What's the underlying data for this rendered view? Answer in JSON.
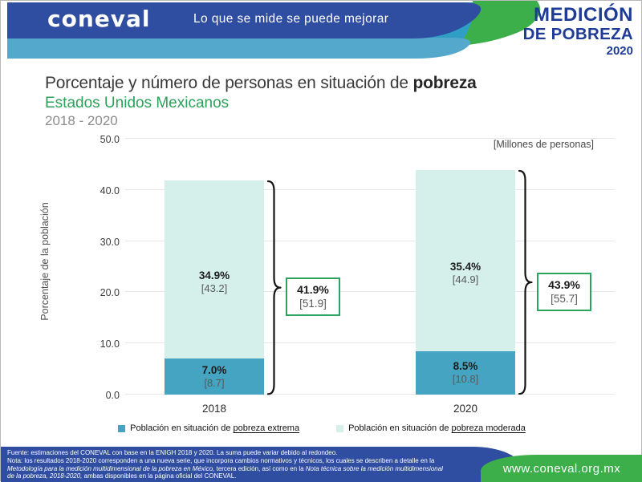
{
  "header": {
    "logo_text": "coneval",
    "slogan": "Lo que se mide se puede mejorar",
    "badge": {
      "line1": "MEDICIÓN",
      "line2": "DE POBREZA",
      "line3": "2020"
    }
  },
  "title": {
    "main_regular": "Porcentaje y número de personas en situación de ",
    "main_bold": "pobreza",
    "subtitle": "Estados Unidos Mexicanos",
    "period": "2018 - 2020"
  },
  "chart_data": {
    "type": "bar",
    "stacked": true,
    "categories": [
      "2018",
      "2020"
    ],
    "series": [
      {
        "name": "Población en situación de pobreza extrema",
        "values_pct": [
          7.0,
          8.5
        ],
        "values_millions": [
          8.7,
          10.8
        ],
        "color": "#45a4c2"
      },
      {
        "name": "Población en situación de pobreza moderada",
        "values_pct": [
          34.9,
          35.4
        ],
        "values_millions": [
          43.2,
          44.9
        ],
        "color": "#d5f0ea"
      }
    ],
    "totals_pct": [
      41.9,
      43.9
    ],
    "totals_millions": [
      51.9,
      55.7
    ],
    "ylabel": "Porcentaje de la población",
    "y_ticks": [
      0.0,
      10.0,
      20.0,
      30.0,
      40.0,
      50.0
    ],
    "ylim": [
      0,
      50
    ],
    "units_note": "[Millones de personas]",
    "grid": true,
    "legend_position": "bottom"
  },
  "legend": [
    {
      "prefix": "Población en situación de ",
      "underlined": "pobreza extrema"
    },
    {
      "prefix": "Población en situación de ",
      "underlined": "pobreza moderada"
    }
  ],
  "footer": {
    "lines": [
      [
        {
          "text": "Fuente: estimaciones del CONEVAL con base en la ENIGH 2018 y 2020.  La suma puede variar debido al redondeo.",
          "italic": false
        }
      ],
      [
        {
          "text": "Nota: los resultados 2018-2020 corresponden a una nueva serie, que incorpora cambios normativos y técnicos, los cuales se describen a detalle en la",
          "italic": false
        }
      ],
      [
        {
          "text": "Metodología para la medición multidimensional de la pobreza en México,",
          "italic": true
        },
        {
          "text": " tercera edición, así como en la ",
          "italic": false
        },
        {
          "text": "Nota técnica sobre la medición multidimensional",
          "italic": true
        }
      ],
      [
        {
          "text": "de la pobreza, 2018-2020,",
          "italic": true
        },
        {
          "text": " ambas disponibles en la página oficial del CONEVAL.",
          "italic": false
        }
      ]
    ],
    "website": "www.coneval.org.mx"
  },
  "colors": {
    "brand_blue": "#2f4da1",
    "band_blue": "#54a8cc",
    "swoosh_teal": "#2f9fc6",
    "swoosh_green": "#3cae4a",
    "badge_blue": "#1e3c96",
    "title_green": "#2ba159",
    "box_green": "#2aa45f"
  }
}
